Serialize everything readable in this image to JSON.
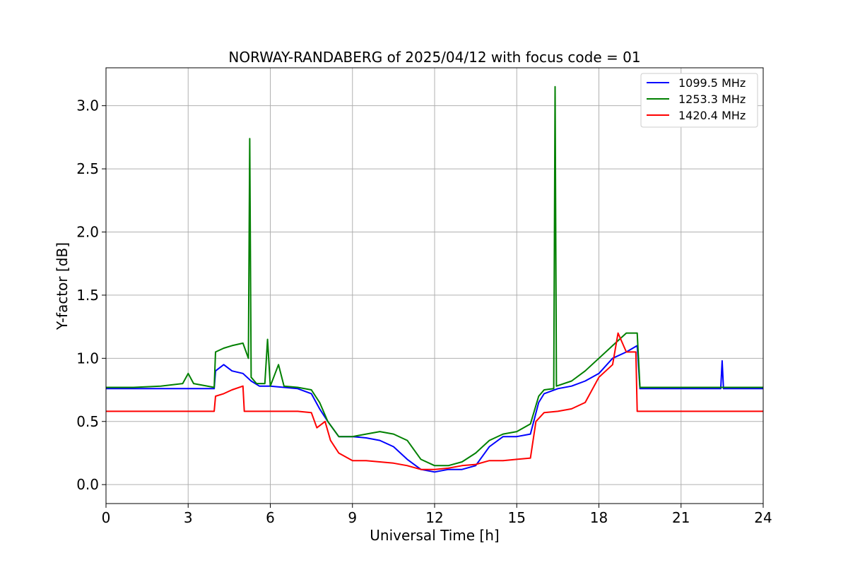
{
  "chart_data": {
    "type": "line",
    "title": "NORWAY-RANDABERG of 2025/04/12 with focus code = 01",
    "xlabel": "Universal Time [h]",
    "ylabel": "Y-factor [dB]",
    "xlim": [
      0,
      24
    ],
    "ylim": [
      -0.15,
      3.3
    ],
    "xticks": [
      0,
      3,
      6,
      9,
      12,
      15,
      18,
      21,
      24
    ],
    "yticks": [
      0.0,
      0.5,
      1.0,
      1.5,
      2.0,
      2.5,
      3.0
    ],
    "ytick_labels": [
      "0.0",
      "0.5",
      "1.0",
      "1.5",
      "2.0",
      "2.5",
      "3.0"
    ],
    "grid": true,
    "legend_position": "top-right",
    "series": [
      {
        "name": "1099.5 MHz",
        "color": "#0000ff",
        "x": [
          0,
          1,
          2,
          3,
          3.95,
          4.0,
          4.3,
          4.6,
          5.0,
          5.3,
          5.6,
          6.0,
          6.5,
          7.0,
          7.5,
          7.8,
          8.1,
          8.5,
          9.0,
          9.5,
          10.0,
          10.5,
          11.0,
          11.5,
          12.0,
          12.5,
          13.0,
          13.5,
          14.0,
          14.5,
          15.0,
          15.5,
          15.8,
          16.0,
          16.5,
          17.0,
          17.5,
          18.0,
          18.5,
          19.0,
          19.4,
          19.5,
          20,
          21,
          22,
          22.45,
          22.5,
          22.55,
          23,
          24
        ],
        "y": [
          0.76,
          0.76,
          0.76,
          0.76,
          0.76,
          0.9,
          0.95,
          0.9,
          0.88,
          0.82,
          0.78,
          0.78,
          0.77,
          0.76,
          0.72,
          0.6,
          0.5,
          0.38,
          0.38,
          0.37,
          0.35,
          0.3,
          0.2,
          0.12,
          0.1,
          0.12,
          0.12,
          0.15,
          0.3,
          0.38,
          0.38,
          0.4,
          0.65,
          0.72,
          0.76,
          0.78,
          0.82,
          0.88,
          1.0,
          1.05,
          1.1,
          0.76,
          0.76,
          0.76,
          0.76,
          0.76,
          0.98,
          0.76,
          0.76,
          0.76
        ]
      },
      {
        "name": "1253.3 MHz",
        "color": "#008000",
        "x": [
          0,
          1,
          2,
          2.8,
          3.0,
          3.2,
          3.95,
          4.0,
          4.3,
          4.6,
          5.0,
          5.2,
          5.25,
          5.3,
          5.5,
          5.8,
          5.9,
          6.0,
          6.3,
          6.5,
          7.0,
          7.5,
          7.8,
          8.1,
          8.5,
          9.0,
          9.5,
          10.0,
          10.5,
          11.0,
          11.5,
          12.0,
          12.5,
          13.0,
          13.5,
          14.0,
          14.5,
          15.0,
          15.5,
          15.8,
          16.0,
          16.35,
          16.4,
          16.45,
          17.0,
          17.5,
          18.0,
          18.5,
          19.0,
          19.4,
          19.5,
          20,
          21,
          22,
          23,
          24
        ],
        "y": [
          0.77,
          0.77,
          0.78,
          0.8,
          0.88,
          0.8,
          0.77,
          1.05,
          1.08,
          1.1,
          1.12,
          1.0,
          2.74,
          0.85,
          0.8,
          0.8,
          1.15,
          0.78,
          0.95,
          0.78,
          0.77,
          0.75,
          0.65,
          0.5,
          0.38,
          0.38,
          0.4,
          0.42,
          0.4,
          0.35,
          0.2,
          0.15,
          0.15,
          0.18,
          0.25,
          0.35,
          0.4,
          0.42,
          0.48,
          0.7,
          0.75,
          0.76,
          3.15,
          0.78,
          0.82,
          0.9,
          1.0,
          1.1,
          1.2,
          1.2,
          0.77,
          0.77,
          0.77,
          0.77,
          0.77,
          0.77
        ]
      },
      {
        "name": "1420.4 MHz",
        "color": "#ff0000",
        "x": [
          0,
          1,
          2,
          3,
          3.95,
          4.0,
          4.3,
          4.6,
          5.0,
          5.05,
          5.5,
          6.0,
          6.5,
          7.0,
          7.5,
          7.7,
          8.0,
          8.2,
          8.5,
          9.0,
          9.5,
          10.0,
          10.5,
          11.0,
          11.5,
          12.0,
          12.5,
          13.0,
          13.5,
          14.0,
          14.5,
          15.0,
          15.5,
          15.7,
          16.0,
          16.5,
          17.0,
          17.5,
          18.0,
          18.5,
          18.7,
          19.0,
          19.35,
          19.4,
          20,
          21,
          22,
          23,
          24
        ],
        "y": [
          0.58,
          0.58,
          0.58,
          0.58,
          0.58,
          0.7,
          0.72,
          0.75,
          0.78,
          0.58,
          0.58,
          0.58,
          0.58,
          0.58,
          0.57,
          0.45,
          0.5,
          0.35,
          0.25,
          0.19,
          0.19,
          0.18,
          0.17,
          0.15,
          0.12,
          0.12,
          0.13,
          0.15,
          0.16,
          0.19,
          0.19,
          0.2,
          0.21,
          0.5,
          0.57,
          0.58,
          0.6,
          0.65,
          0.85,
          0.95,
          1.2,
          1.05,
          1.05,
          0.58,
          0.58,
          0.58,
          0.58,
          0.58,
          0.58
        ]
      }
    ]
  }
}
